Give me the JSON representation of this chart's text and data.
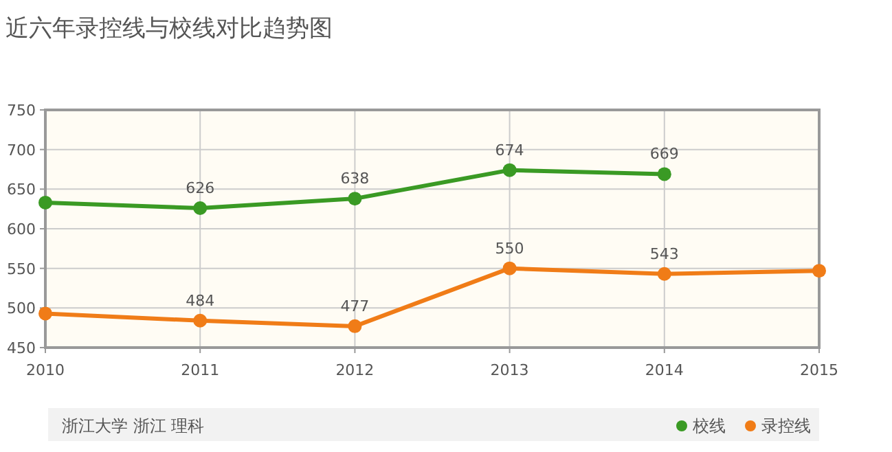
{
  "chart_data": {
    "type": "line",
    "title": "近六年录控线与校线对比趋势图",
    "x": [
      2010,
      2011,
      2012,
      2013,
      2014,
      2015
    ],
    "series": [
      {
        "name": "校线",
        "color": "#3a9a24",
        "values": [
          633,
          626,
          638,
          674,
          669,
          null
        ],
        "value_labels": [
          null,
          "626",
          "638",
          "674",
          "669",
          null
        ]
      },
      {
        "name": "录控线",
        "color": "#f07c17",
        "values": [
          493,
          484,
          477,
          550,
          543,
          547
        ],
        "value_labels": [
          null,
          "484",
          "477",
          "550",
          "543",
          null
        ]
      }
    ],
    "xlim": [
      2010,
      2015
    ],
    "xticks": [
      2010,
      2011,
      2012,
      2013,
      2014,
      2015
    ],
    "ylim": [
      450,
      750
    ],
    "yticks": [
      450,
      500,
      550,
      600,
      650,
      700,
      750
    ],
    "grid": true,
    "marker": "circle",
    "legend": "bottom right",
    "annotations": [
      "浙江大学   浙江   理科"
    ]
  }
}
